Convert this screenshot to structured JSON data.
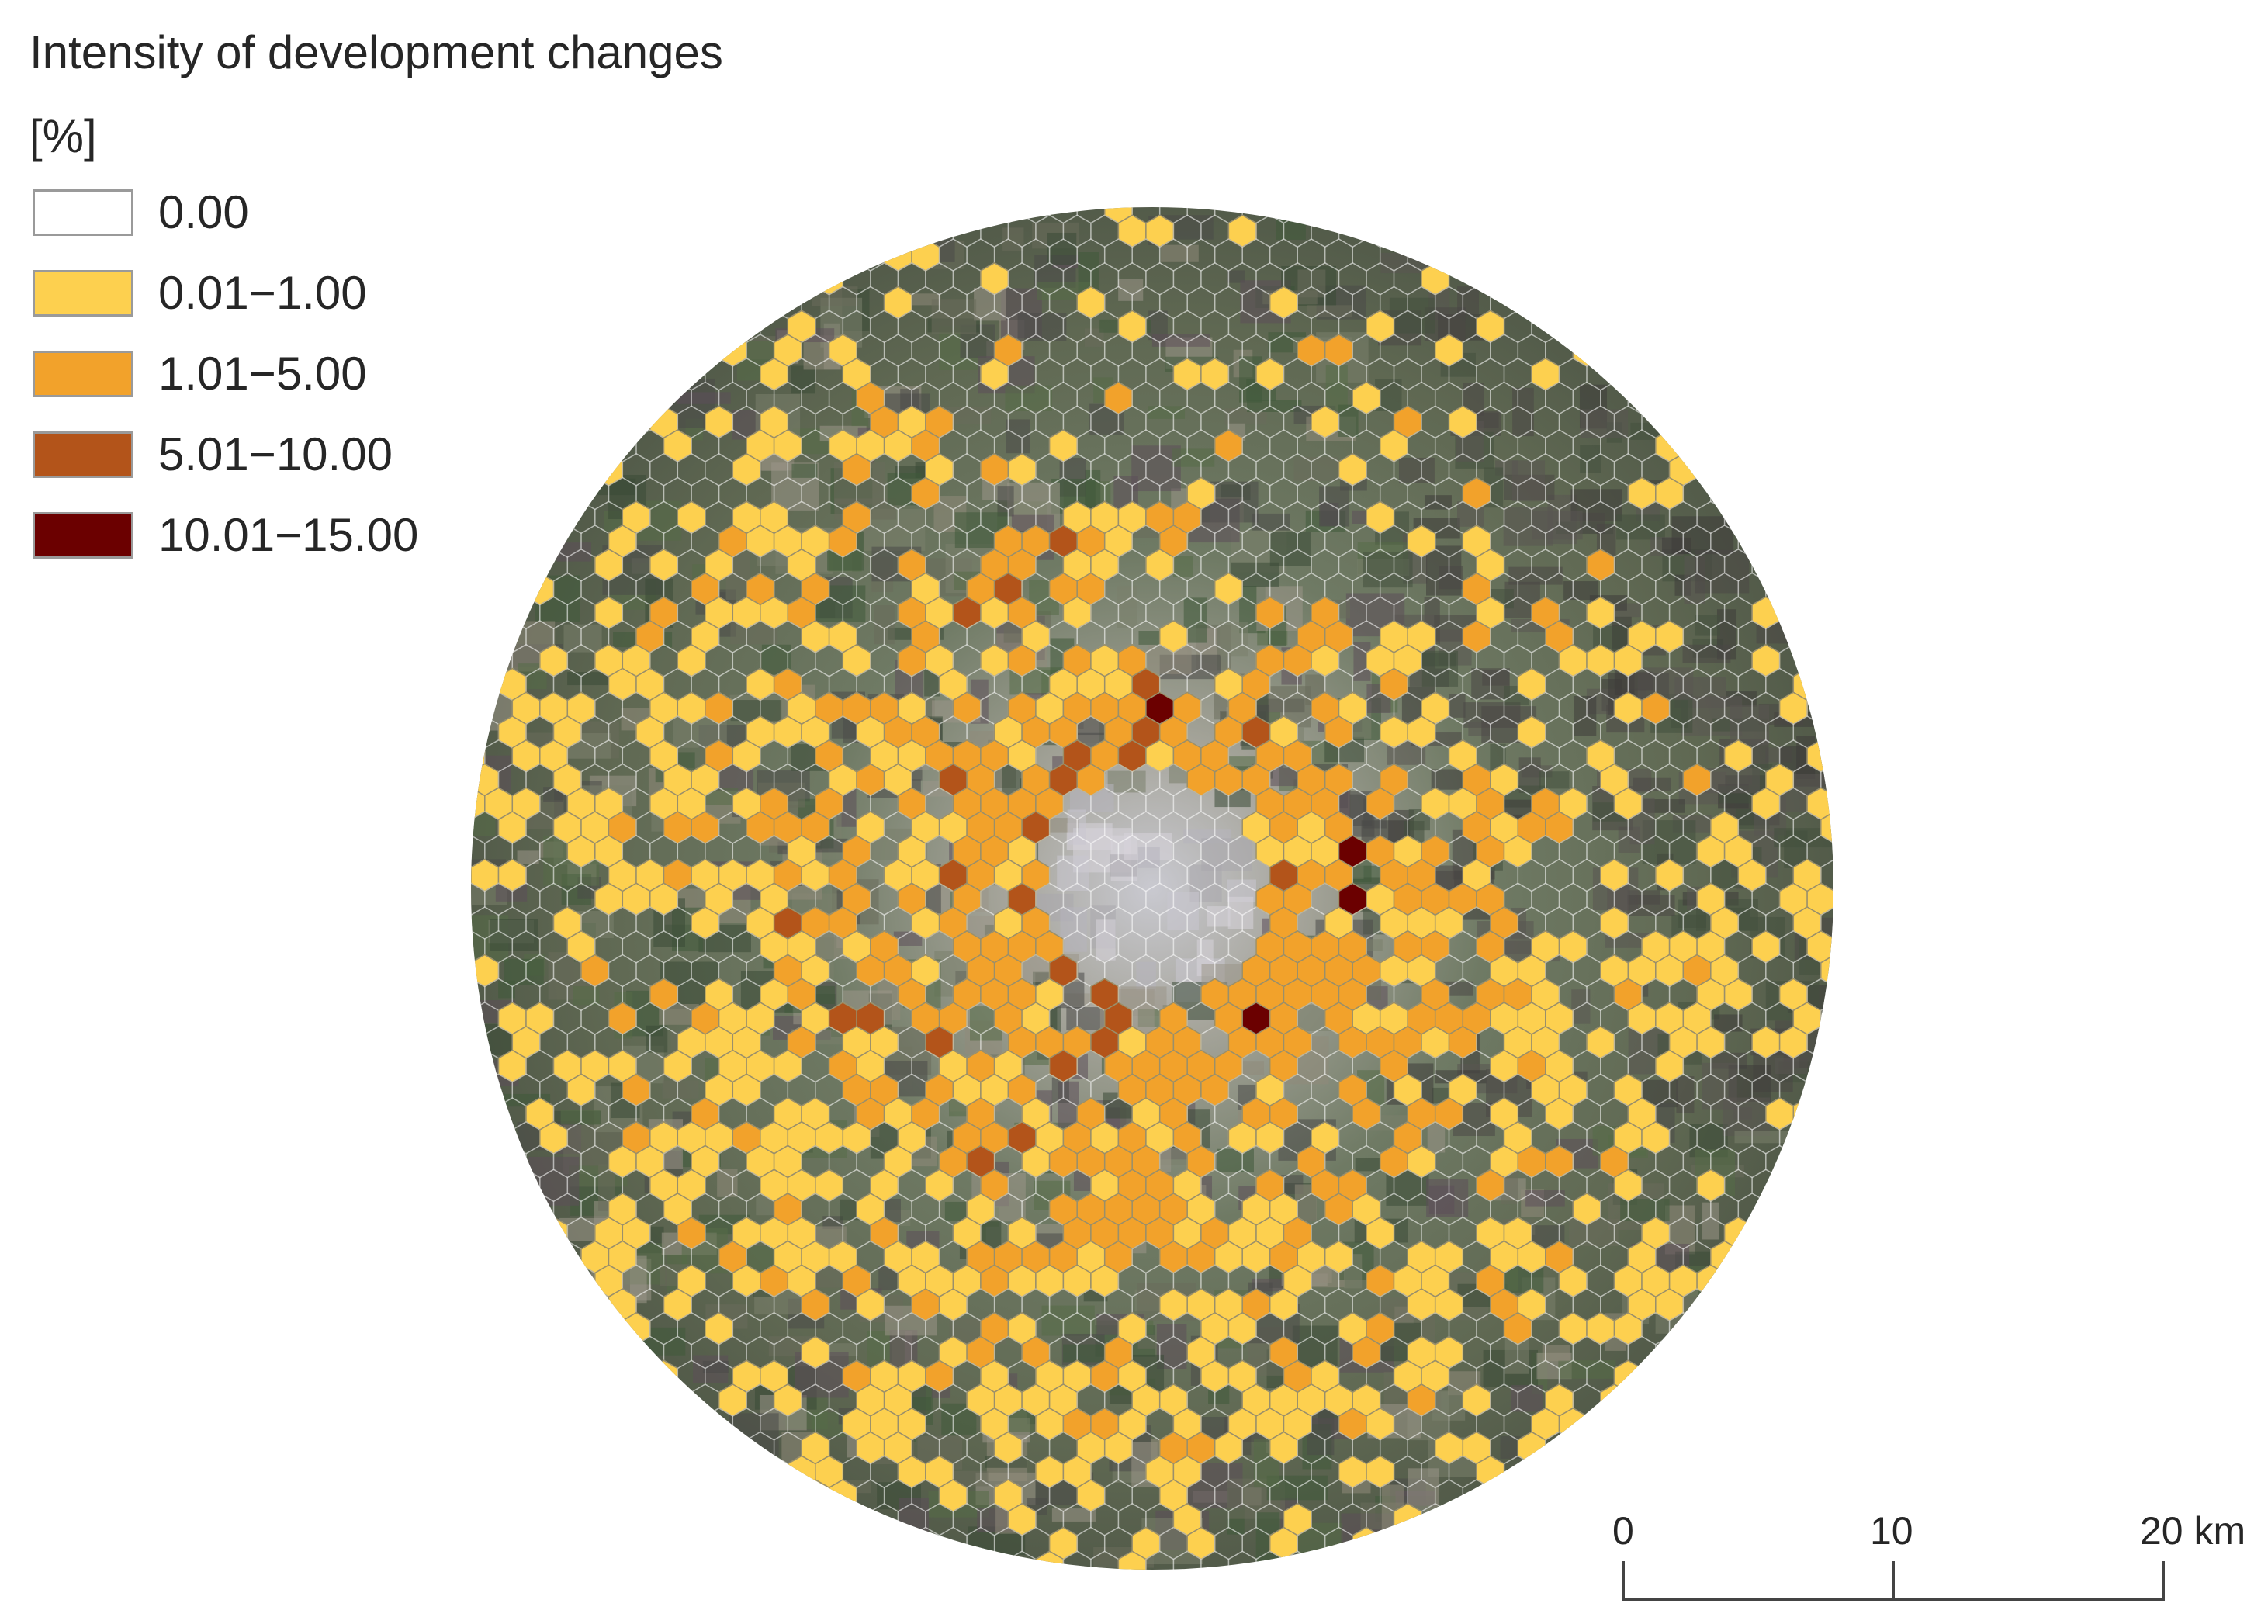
{
  "legend": {
    "title": "Intensity of development changes",
    "unit": "[%]",
    "items": [
      {
        "label": "0.00",
        "color": "#ffffff"
      },
      {
        "label": "0.01−1.00",
        "color": "#fdd04f"
      },
      {
        "label": "1.01−5.00",
        "color": "#f2a22b"
      },
      {
        "label": "5.01−10.00",
        "color": "#b3541a"
      },
      {
        "label": "10.01−15.00",
        "color": "#6b0000"
      }
    ]
  },
  "scalebar": {
    "labels": [
      "0",
      "10",
      "20 km"
    ]
  },
  "map": {
    "basemap": "satellite-imagery",
    "grid": "hexagonal"
  }
}
